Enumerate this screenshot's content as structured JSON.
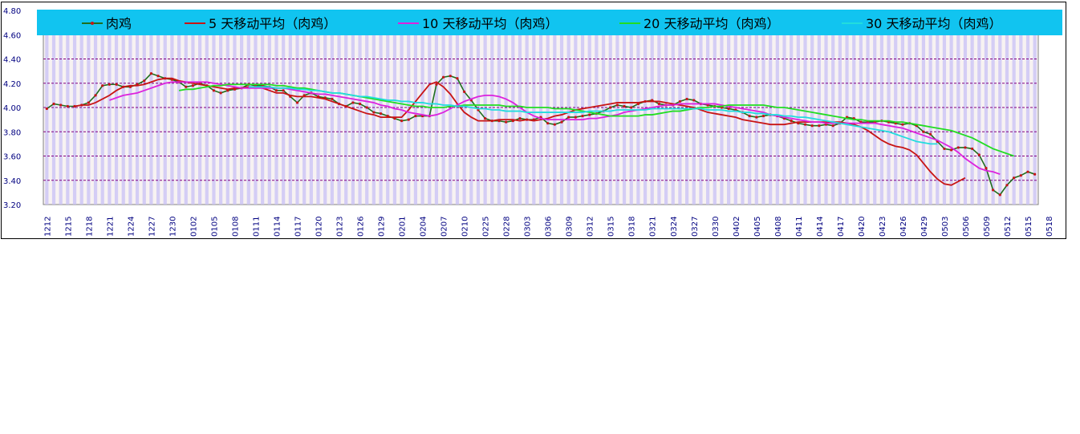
{
  "chart_data": {
    "type": "line",
    "title": "",
    "xlabel": "",
    "ylabel": "",
    "ylim": [
      3.2,
      4.8
    ],
    "yticks": [
      "3.20",
      "3.40",
      "3.60",
      "3.80",
      "4.00",
      "4.20",
      "4.40",
      "4.60",
      "4.80"
    ],
    "x_tick_labels": [
      "1212",
      "1215",
      "1218",
      "1221",
      "1224",
      "1227",
      "1230",
      "0102",
      "0105",
      "0108",
      "0111",
      "0114",
      "0117",
      "0120",
      "0123",
      "0126",
      "0129",
      "0201",
      "0204",
      "0207",
      "0210",
      "0225",
      "0228",
      "0303",
      "0306",
      "0309",
      "0312",
      "0315",
      "0318",
      "0321",
      "0324",
      "0327",
      "0330",
      "0402",
      "0405",
      "0408",
      "0411",
      "0414",
      "0417",
      "0420",
      "0423",
      "0426",
      "0429",
      "0503",
      "0506",
      "0509",
      "0512",
      "0515",
      "0518"
    ],
    "grid": true,
    "legend_position": "top",
    "background_color": "#f7f2f2",
    "legend_bar_color": "#11c4f0",
    "bar_color": "#c8c0f5",
    "series": [
      {
        "name": "肉鸡",
        "color": "#1f6e1f",
        "values": [
          3.99,
          4.03,
          4.02,
          4.01,
          4.01,
          4.02,
          4.04,
          4.1,
          4.18,
          4.19,
          4.19,
          4.17,
          4.17,
          4.19,
          4.22,
          4.28,
          4.26,
          4.24,
          4.23,
          4.21,
          4.17,
          4.18,
          4.2,
          4.18,
          4.14,
          4.12,
          4.14,
          4.15,
          4.16,
          4.19,
          4.18,
          4.18,
          4.17,
          4.14,
          4.14,
          4.09,
          4.04,
          4.1,
          4.12,
          4.09,
          4.08,
          4.07,
          4.03,
          4.01,
          4.04,
          4.03,
          4.0,
          3.96,
          3.95,
          3.93,
          3.91,
          3.89,
          3.9,
          3.93,
          3.93,
          3.93,
          4.19,
          4.25,
          4.26,
          4.24,
          4.13,
          4.06,
          3.98,
          3.91,
          3.89,
          3.89,
          3.88,
          3.89,
          3.91,
          3.9,
          3.9,
          3.92,
          3.87,
          3.86,
          3.88,
          3.92,
          3.92,
          3.93,
          3.94,
          3.95,
          3.97,
          4.0,
          4.02,
          4.01,
          4.0,
          4.03,
          4.05,
          4.06,
          4.03,
          4.02,
          4.02,
          4.05,
          4.07,
          4.06,
          4.03,
          4.02,
          4.01,
          4.0,
          3.99,
          3.98,
          3.96,
          3.93,
          3.92,
          3.93,
          3.94,
          3.93,
          3.91,
          3.89,
          3.87,
          3.86,
          3.85,
          3.85,
          3.86,
          3.85,
          3.87,
          3.92,
          3.91,
          3.88,
          3.88,
          3.88,
          3.89,
          3.88,
          3.87,
          3.86,
          3.87,
          3.85,
          3.8,
          3.78,
          3.72,
          3.66,
          3.65,
          3.67,
          3.67,
          3.66,
          3.61,
          3.5,
          3.32,
          3.28,
          3.36,
          3.42,
          3.44,
          3.47,
          3.45
        ]
      },
      {
        "name": "5 天移动平均（肉鸡）",
        "color": "#c81414",
        "start_index": 4,
        "values": [
          4.01,
          4.02,
          4.02,
          4.04,
          4.07,
          4.1,
          4.14,
          4.17,
          4.18,
          4.18,
          4.19,
          4.21,
          4.23,
          4.24,
          4.24,
          4.22,
          4.21,
          4.2,
          4.19,
          4.18,
          4.17,
          4.16,
          4.15,
          4.16,
          4.16,
          4.17,
          4.17,
          4.16,
          4.14,
          4.12,
          4.12,
          4.1,
          4.09,
          4.09,
          4.09,
          4.08,
          4.07,
          4.05,
          4.03,
          4.01,
          3.99,
          3.97,
          3.95,
          3.94,
          3.92,
          3.92,
          3.92,
          3.92,
          3.98,
          4.05,
          4.12,
          4.19,
          4.21,
          4.17,
          4.11,
          4.03,
          3.96,
          3.92,
          3.89,
          3.89,
          3.89,
          3.9,
          3.9,
          3.9,
          3.89,
          3.9,
          3.89,
          3.9,
          3.91,
          3.93,
          3.94,
          3.96,
          3.98,
          3.99,
          4.0,
          4.01,
          4.02,
          4.03,
          4.04,
          4.04,
          4.04,
          4.04,
          4.05,
          4.05,
          4.05,
          4.04,
          4.03,
          4.02,
          4.01,
          4.0,
          3.98,
          3.96,
          3.95,
          3.94,
          3.93,
          3.92,
          3.9,
          3.89,
          3.88,
          3.87,
          3.86,
          3.86,
          3.86,
          3.87,
          3.88,
          3.88,
          3.88,
          3.88,
          3.88,
          3.88,
          3.88,
          3.87,
          3.86,
          3.84,
          3.81,
          3.77,
          3.73,
          3.7,
          3.68,
          3.67,
          3.65,
          3.61,
          3.54,
          3.47,
          3.41,
          3.37,
          3.36,
          3.39,
          3.42
        ]
      },
      {
        "name": "10 天移动平均（肉鸡）",
        "color": "#dd22dd",
        "start_index": 9,
        "values": [
          4.06,
          4.08,
          4.1,
          4.11,
          4.12,
          4.14,
          4.16,
          4.18,
          4.2,
          4.21,
          4.21,
          4.21,
          4.21,
          4.21,
          4.21,
          4.2,
          4.19,
          4.18,
          4.17,
          4.16,
          4.16,
          4.16,
          4.16,
          4.16,
          4.16,
          4.16,
          4.15,
          4.14,
          4.13,
          4.12,
          4.11,
          4.11,
          4.1,
          4.09,
          4.08,
          4.07,
          4.06,
          4.05,
          4.04,
          4.02,
          4.01,
          3.99,
          3.98,
          3.96,
          3.95,
          3.94,
          3.93,
          3.94,
          3.96,
          3.99,
          4.02,
          4.05,
          4.07,
          4.09,
          4.1,
          4.1,
          4.09,
          4.07,
          4.04,
          4.0,
          3.96,
          3.93,
          3.91,
          3.9,
          3.9,
          3.9,
          3.9,
          3.9,
          3.9,
          3.91,
          3.91,
          3.92,
          3.93,
          3.94,
          3.96,
          3.97,
          3.98,
          3.99,
          4.0,
          4.01,
          4.02,
          4.02,
          4.03,
          4.03,
          4.03,
          4.03,
          4.03,
          4.03,
          4.02,
          4.01,
          4.0,
          3.99,
          3.98,
          3.97,
          3.96,
          3.94,
          3.93,
          3.92,
          3.91,
          3.9,
          3.89,
          3.88,
          3.88,
          3.87,
          3.87,
          3.87,
          3.87,
          3.87,
          3.87,
          3.87,
          3.87,
          3.86,
          3.85,
          3.84,
          3.83,
          3.81,
          3.79,
          3.77,
          3.75,
          3.73,
          3.7,
          3.67,
          3.63,
          3.58,
          3.54,
          3.5,
          3.48,
          3.47,
          3.45
        ]
      },
      {
        "name": "20 天移动平均（肉鸡）",
        "color": "#22dd22",
        "start_index": 19,
        "values": [
          4.14,
          4.15,
          4.15,
          4.16,
          4.17,
          4.18,
          4.18,
          4.19,
          4.19,
          4.19,
          4.19,
          4.19,
          4.19,
          4.19,
          4.18,
          4.18,
          4.17,
          4.16,
          4.16,
          4.15,
          4.14,
          4.13,
          4.12,
          4.12,
          4.11,
          4.1,
          4.09,
          4.08,
          4.07,
          4.06,
          4.05,
          4.04,
          4.03,
          4.02,
          4.01,
          4.01,
          4.0,
          4.0,
          4.0,
          4.01,
          4.01,
          4.02,
          4.02,
          4.02,
          4.02,
          4.02,
          4.02,
          4.01,
          4.01,
          4.01,
          4.0,
          4.0,
          4.0,
          4.0,
          3.99,
          3.99,
          3.99,
          3.98,
          3.97,
          3.96,
          3.95,
          3.94,
          3.93,
          3.93,
          3.93,
          3.93,
          3.93,
          3.94,
          3.94,
          3.95,
          3.96,
          3.97,
          3.97,
          3.98,
          3.99,
          4.0,
          4.0,
          4.01,
          4.01,
          4.02,
          4.02,
          4.02,
          4.02,
          4.02,
          4.02,
          4.01,
          4.0,
          4.0,
          3.99,
          3.98,
          3.97,
          3.96,
          3.95,
          3.94,
          3.93,
          3.92,
          3.91,
          3.9,
          3.9,
          3.89,
          3.89,
          3.89,
          3.89,
          3.88,
          3.88,
          3.87,
          3.86,
          3.85,
          3.84,
          3.83,
          3.82,
          3.81,
          3.79,
          3.77,
          3.75,
          3.72,
          3.69,
          3.66,
          3.64,
          3.62,
          3.6
        ]
      },
      {
        "name": "30 天移动平均（肉鸡）",
        "color": "#22dddd",
        "start_index": 29,
        "values": [
          4.17,
          4.17,
          4.17,
          4.17,
          4.16,
          4.16,
          4.16,
          4.15,
          4.15,
          4.14,
          4.14,
          4.13,
          4.12,
          4.12,
          4.11,
          4.1,
          4.09,
          4.09,
          4.08,
          4.07,
          4.06,
          4.06,
          4.05,
          4.05,
          4.04,
          4.04,
          4.03,
          4.03,
          4.02,
          4.02,
          4.01,
          4.01,
          4.0,
          3.99,
          3.99,
          3.98,
          3.98,
          3.97,
          3.97,
          3.97,
          3.96,
          3.96,
          3.96,
          3.96,
          3.96,
          3.96,
          3.96,
          3.96,
          3.96,
          3.97,
          3.97,
          3.97,
          3.97,
          3.98,
          3.98,
          3.98,
          3.98,
          3.98,
          3.99,
          3.99,
          3.99,
          3.99,
          3.99,
          3.99,
          3.99,
          3.99,
          3.98,
          3.98,
          3.98,
          3.97,
          3.97,
          3.96,
          3.96,
          3.95,
          3.95,
          3.94,
          3.94,
          3.93,
          3.93,
          3.92,
          3.92,
          3.91,
          3.9,
          3.89,
          3.88,
          3.87,
          3.86,
          3.85,
          3.84,
          3.83,
          3.82,
          3.81,
          3.8,
          3.78,
          3.76,
          3.74,
          3.72,
          3.71,
          3.7,
          3.7
        ]
      }
    ]
  }
}
